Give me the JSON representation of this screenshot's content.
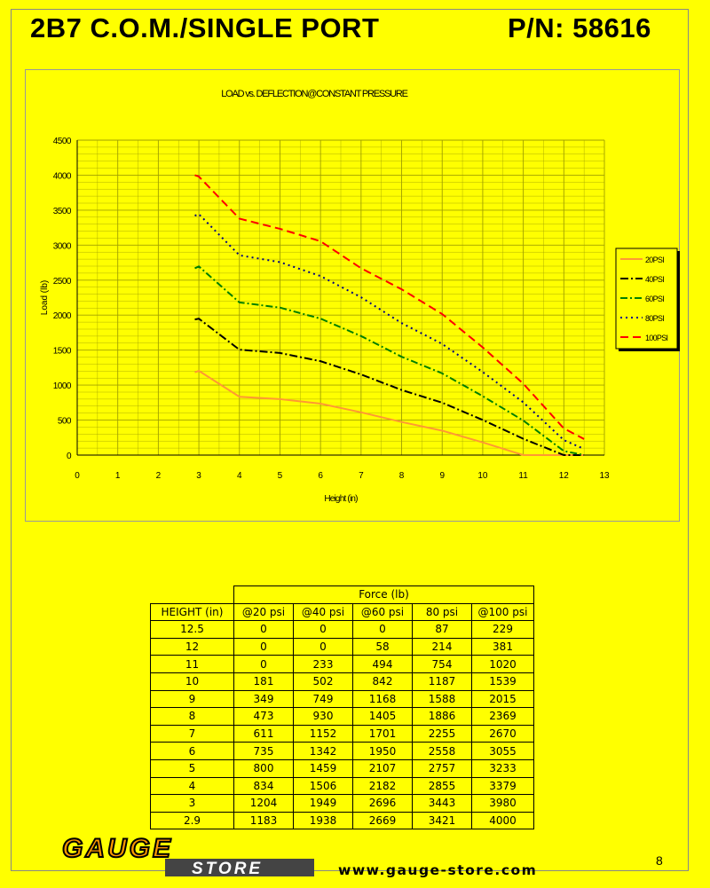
{
  "header": {
    "title": "2B7 C.O.M./SINGLE PORT",
    "part_number": "P/N: 58616"
  },
  "colors": {
    "background": "#ffff00",
    "20psi": "#ff9933",
    "40psi": "#000000",
    "60psi": "#008000",
    "80psi": "#000080",
    "100psi": "#ff0000",
    "grid": "#a0a000"
  },
  "chart_data": {
    "type": "line",
    "title": "LOAD vs. DEFLECTION@CONSTANT PRESSURE",
    "xlabel": "Height (in)",
    "ylabel": "Load (lb)",
    "xlim": [
      0,
      13
    ],
    "ylim": [
      0,
      4500
    ],
    "x_ticks": [
      0,
      1,
      2,
      3,
      4,
      5,
      6,
      7,
      8,
      9,
      10,
      11,
      12,
      13
    ],
    "y_ticks": [
      0,
      500,
      1000,
      1500,
      2000,
      2500,
      3000,
      3500,
      4000,
      4500
    ],
    "grid": true,
    "legend_position": "right",
    "x": [
      2.9,
      3,
      4,
      5,
      6,
      7,
      8,
      9,
      10,
      11,
      12,
      12.5
    ],
    "series": [
      {
        "name": "20PSI",
        "values": [
          1183,
          1204,
          834,
          800,
          735,
          611,
          473,
          349,
          181,
          0,
          0,
          0
        ]
      },
      {
        "name": "40PSI",
        "values": [
          1938,
          1949,
          1506,
          1459,
          1342,
          1152,
          930,
          749,
          502,
          233,
          0,
          0
        ]
      },
      {
        "name": "60PSI",
        "values": [
          2669,
          2696,
          2182,
          2107,
          1950,
          1701,
          1405,
          1168,
          842,
          494,
          58,
          0
        ]
      },
      {
        "name": "80PSI",
        "values": [
          3421,
          3443,
          2855,
          2757,
          2558,
          2255,
          1886,
          1588,
          1187,
          754,
          214,
          87
        ]
      },
      {
        "name": "100PSI",
        "values": [
          4000,
          3980,
          3379,
          3233,
          3055,
          2670,
          2369,
          2015,
          1539,
          1020,
          381,
          229
        ]
      }
    ]
  },
  "table": {
    "group_header": "Force (lb)",
    "columns": [
      "HEIGHT (in)",
      "@20 psi",
      "@40 psi",
      "@60 psi",
      "80 psi",
      "@100 psi"
    ],
    "rows": [
      [
        "12.5",
        "0",
        "0",
        "0",
        "87",
        "229"
      ],
      [
        "12",
        "0",
        "0",
        "58",
        "214",
        "381"
      ],
      [
        "11",
        "0",
        "233",
        "494",
        "754",
        "1020"
      ],
      [
        "10",
        "181",
        "502",
        "842",
        "1187",
        "1539"
      ],
      [
        "9",
        "349",
        "749",
        "1168",
        "1588",
        "2015"
      ],
      [
        "8",
        "473",
        "930",
        "1405",
        "1886",
        "2369"
      ],
      [
        "7",
        "611",
        "1152",
        "1701",
        "2255",
        "2670"
      ],
      [
        "6",
        "735",
        "1342",
        "1950",
        "2558",
        "3055"
      ],
      [
        "5",
        "800",
        "1459",
        "2107",
        "2757",
        "3233"
      ],
      [
        "4",
        "834",
        "1506",
        "2182",
        "2855",
        "3379"
      ],
      [
        "3",
        "1204",
        "1949",
        "2696",
        "3443",
        "3980"
      ],
      [
        "2.9",
        "1183",
        "1938",
        "2669",
        "3421",
        "4000"
      ]
    ]
  },
  "footer": {
    "logo_top": "GAUGE",
    "logo_bottom": "STORE",
    "url": "www.gauge-store.com",
    "page_number": "8"
  }
}
